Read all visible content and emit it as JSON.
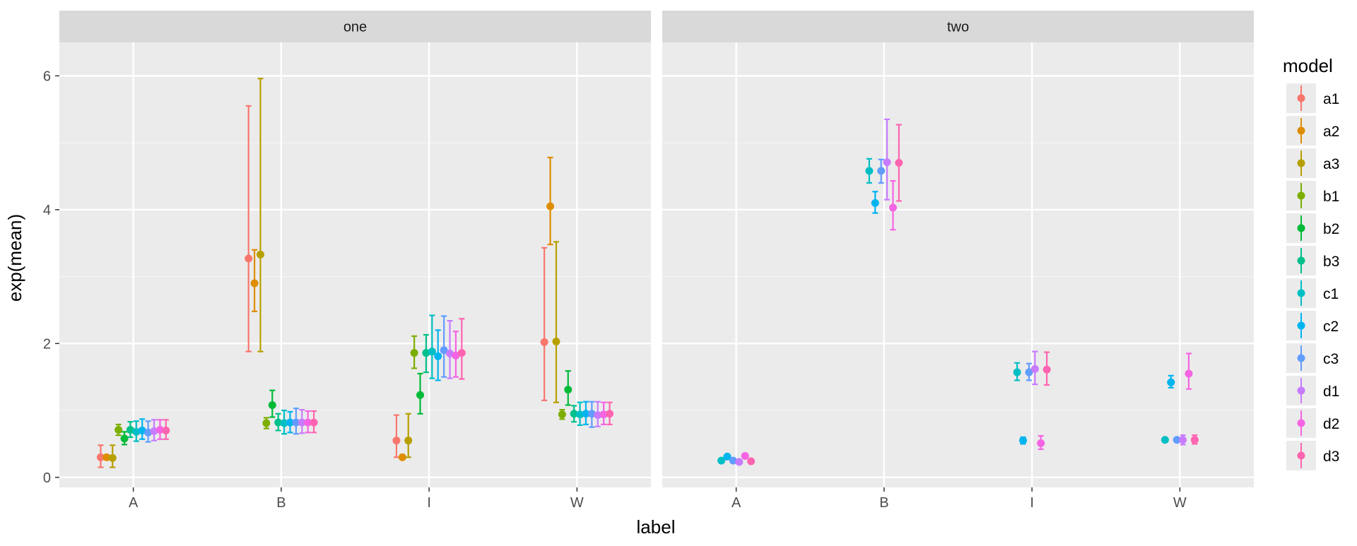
{
  "chart_data": {
    "type": "scatter",
    "subtype": "faceted point-range (mean with error bars)",
    "xlabel": "label",
    "ylabel": "exp(mean)",
    "ylim": [
      -0.15,
      6.5
    ],
    "yticks": [
      0,
      2,
      4,
      6
    ],
    "categories": [
      "A",
      "B",
      "I",
      "W"
    ],
    "grid": true,
    "legend": {
      "title": "model",
      "placement": "right"
    },
    "series_colors": {
      "a1": "#F8766D",
      "a2": "#DE8C00",
      "a3": "#B79F00",
      "b1": "#7CAE00",
      "b2": "#00BA38",
      "b3": "#00C08B",
      "c1": "#00BFC4",
      "c2": "#00B4F0",
      "c3": "#619CFF",
      "d1": "#C77CFF",
      "d2": "#F564E3",
      "d3": "#FF64B0"
    },
    "facets": [
      {
        "title": "one",
        "series": [
          {
            "name": "a1",
            "points": [
              {
                "x": "A",
                "y": 0.3,
                "lo": 0.15,
                "hi": 0.48
              },
              {
                "x": "B",
                "y": 3.27,
                "lo": 1.88,
                "hi": 5.55
              },
              {
                "x": "I",
                "y": 0.55,
                "lo": 0.3,
                "hi": 0.93
              },
              {
                "x": "W",
                "y": 2.02,
                "lo": 1.15,
                "hi": 3.43
              }
            ]
          },
          {
            "name": "a2",
            "points": [
              {
                "x": "A",
                "y": 0.3,
                "lo": 0.28,
                "hi": 0.32
              },
              {
                "x": "B",
                "y": 2.9,
                "lo": 2.48,
                "hi": 3.4
              },
              {
                "x": "I",
                "y": 0.3,
                "lo": 0.28,
                "hi": 0.33
              },
              {
                "x": "W",
                "y": 4.05,
                "lo": 3.48,
                "hi": 4.78
              }
            ]
          },
          {
            "name": "a3",
            "points": [
              {
                "x": "A",
                "y": 0.29,
                "lo": 0.15,
                "hi": 0.48
              },
              {
                "x": "B",
                "y": 3.33,
                "lo": 1.88,
                "hi": 5.96
              },
              {
                "x": "I",
                "y": 0.55,
                "lo": 0.3,
                "hi": 0.95
              },
              {
                "x": "W",
                "y": 2.03,
                "lo": 1.12,
                "hi": 3.52
              }
            ]
          },
          {
            "name": "b1",
            "points": [
              {
                "x": "A",
                "y": 0.71,
                "lo": 0.63,
                "hi": 0.79
              },
              {
                "x": "B",
                "y": 0.81,
                "lo": 0.73,
                "hi": 0.89
              },
              {
                "x": "I",
                "y": 1.86,
                "lo": 1.63,
                "hi": 2.11
              },
              {
                "x": "W",
                "y": 0.94,
                "lo": 0.87,
                "hi": 1.01
              }
            ]
          },
          {
            "name": "b2",
            "points": [
              {
                "x": "A",
                "y": 0.58,
                "lo": 0.49,
                "hi": 0.68
              },
              {
                "x": "B",
                "y": 1.08,
                "lo": 0.9,
                "hi": 1.3
              },
              {
                "x": "I",
                "y": 1.23,
                "lo": 0.95,
                "hi": 1.55
              },
              {
                "x": "W",
                "y": 1.31,
                "lo": 1.08,
                "hi": 1.59
              }
            ]
          },
          {
            "name": "b3",
            "points": [
              {
                "x": "A",
                "y": 0.71,
                "lo": 0.6,
                "hi": 0.83
              },
              {
                "x": "B",
                "y": 0.82,
                "lo": 0.7,
                "hi": 0.95
              },
              {
                "x": "I",
                "y": 1.86,
                "lo": 1.57,
                "hi": 2.13
              },
              {
                "x": "W",
                "y": 0.95,
                "lo": 0.83,
                "hi": 1.07
              }
            ]
          },
          {
            "name": "c1",
            "points": [
              {
                "x": "A",
                "y": 0.68,
                "lo": 0.54,
                "hi": 0.84
              },
              {
                "x": "B",
                "y": 0.81,
                "lo": 0.65,
                "hi": 1.0
              },
              {
                "x": "I",
                "y": 1.88,
                "lo": 1.48,
                "hi": 2.42
              },
              {
                "x": "W",
                "y": 0.94,
                "lo": 0.78,
                "hi": 1.12
              }
            ]
          },
          {
            "name": "c2",
            "points": [
              {
                "x": "A",
                "y": 0.7,
                "lo": 0.57,
                "hi": 0.87
              },
              {
                "x": "B",
                "y": 0.82,
                "lo": 0.67,
                "hi": 0.98
              },
              {
                "x": "I",
                "y": 1.81,
                "lo": 1.45,
                "hi": 2.2
              },
              {
                "x": "W",
                "y": 0.95,
                "lo": 0.79,
                "hi": 1.13
              }
            ]
          },
          {
            "name": "c3",
            "points": [
              {
                "x": "A",
                "y": 0.67,
                "lo": 0.53,
                "hi": 0.84
              },
              {
                "x": "B",
                "y": 0.82,
                "lo": 0.65,
                "hi": 1.03
              },
              {
                "x": "I",
                "y": 1.9,
                "lo": 1.5,
                "hi": 2.41
              },
              {
                "x": "W",
                "y": 0.95,
                "lo": 0.75,
                "hi": 1.13
              }
            ]
          },
          {
            "name": "d1",
            "points": [
              {
                "x": "A",
                "y": 0.69,
                "lo": 0.55,
                "hi": 0.86
              },
              {
                "x": "B",
                "y": 0.82,
                "lo": 0.66,
                "hi": 1.01
              },
              {
                "x": "I",
                "y": 1.85,
                "lo": 1.48,
                "hi": 2.34
              },
              {
                "x": "W",
                "y": 0.93,
                "lo": 0.76,
                "hi": 1.13
              }
            ]
          },
          {
            "name": "d2",
            "points": [
              {
                "x": "A",
                "y": 0.71,
                "lo": 0.57,
                "hi": 0.86
              },
              {
                "x": "B",
                "y": 0.82,
                "lo": 0.67,
                "hi": 0.99
              },
              {
                "x": "I",
                "y": 1.82,
                "lo": 1.5,
                "hi": 2.18
              },
              {
                "x": "W",
                "y": 0.94,
                "lo": 0.79,
                "hi": 1.12
              }
            ]
          },
          {
            "name": "d3",
            "points": [
              {
                "x": "A",
                "y": 0.7,
                "lo": 0.57,
                "hi": 0.86
              },
              {
                "x": "B",
                "y": 0.82,
                "lo": 0.67,
                "hi": 0.99
              },
              {
                "x": "I",
                "y": 1.86,
                "lo": 1.47,
                "hi": 2.37
              },
              {
                "x": "W",
                "y": 0.95,
                "lo": 0.79,
                "hi": 1.12
              }
            ]
          }
        ]
      },
      {
        "title": "two",
        "series": [
          {
            "name": "c1",
            "points": [
              {
                "x": "A",
                "y": 0.25
              },
              {
                "x": "B",
                "y": 4.58,
                "lo": 4.4,
                "hi": 4.76
              },
              {
                "x": "I",
                "y": 1.57,
                "lo": 1.45,
                "hi": 1.71
              },
              {
                "x": "W",
                "y": 0.56
              }
            ]
          },
          {
            "name": "c2",
            "points": [
              {
                "x": "A",
                "y": 0.31
              },
              {
                "x": "B",
                "y": 4.1,
                "lo": 3.95,
                "hi": 4.27
              },
              {
                "x": "I",
                "y": 0.55,
                "lo": 0.5,
                "hi": 0.6
              },
              {
                "x": "W",
                "y": 1.42,
                "lo": 1.34,
                "hi": 1.52
              }
            ]
          },
          {
            "name": "c3",
            "points": [
              {
                "x": "A",
                "y": 0.25
              },
              {
                "x": "B",
                "y": 4.58,
                "lo": 4.4,
                "hi": 4.75
              },
              {
                "x": "I",
                "y": 1.57,
                "lo": 1.45,
                "hi": 1.7
              },
              {
                "x": "W",
                "y": 0.56
              }
            ]
          },
          {
            "name": "d1",
            "points": [
              {
                "x": "A",
                "y": 0.23
              },
              {
                "x": "B",
                "y": 4.71,
                "lo": 4.15,
                "hi": 5.35
              },
              {
                "x": "I",
                "y": 1.62,
                "lo": 1.39,
                "hi": 1.88
              },
              {
                "x": "W",
                "y": 0.56,
                "lo": 0.49,
                "hi": 0.63
              }
            ]
          },
          {
            "name": "d2",
            "points": [
              {
                "x": "A",
                "y": 0.32
              },
              {
                "x": "B",
                "y": 4.03,
                "lo": 3.7,
                "hi": 4.43
              },
              {
                "x": "I",
                "y": 0.51,
                "lo": 0.42,
                "hi": 0.62
              },
              {
                "x": "W",
                "y": 1.55,
                "lo": 1.32,
                "hi": 1.85
              }
            ]
          },
          {
            "name": "d3",
            "points": [
              {
                "x": "A",
                "y": 0.24
              },
              {
                "x": "B",
                "y": 4.7,
                "lo": 4.13,
                "hi": 5.27
              },
              {
                "x": "I",
                "y": 1.61,
                "lo": 1.38,
                "hi": 1.87
              },
              {
                "x": "W",
                "y": 0.56,
                "lo": 0.5,
                "hi": 0.63
              }
            ]
          }
        ]
      }
    ]
  }
}
